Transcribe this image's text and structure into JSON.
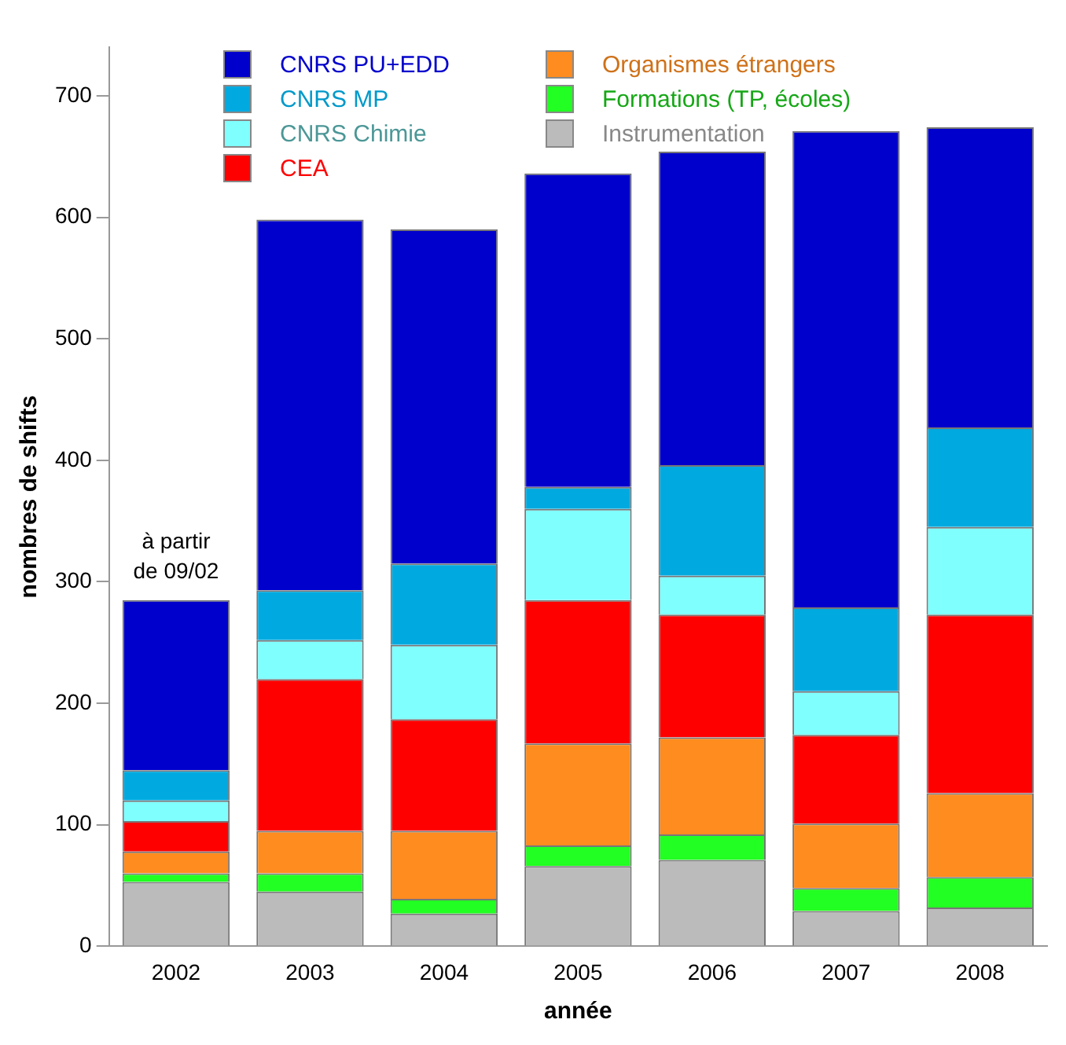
{
  "chart_data": {
    "type": "bar",
    "stacked": true,
    "xlabel": "année",
    "ylabel": "nombres de shifts",
    "categories": [
      "2002",
      "2003",
      "2004",
      "2005",
      "2006",
      "2007",
      "2008"
    ],
    "series": [
      {
        "name": "Instrumentation",
        "color": "#bbbbbb",
        "values": [
          53,
          45,
          27,
          66,
          71,
          29,
          32
        ]
      },
      {
        "name": "Formations (TP, écoles)",
        "color": "#22ff22",
        "values": [
          7,
          15,
          12,
          17,
          21,
          19,
          25
        ]
      },
      {
        "name": "Organismes étrangers",
        "color": "#ff8c1e",
        "values": [
          18,
          35,
          56,
          84,
          80,
          53,
          69
        ]
      },
      {
        "name": "CEA",
        "color": "#ff0000",
        "values": [
          25,
          125,
          92,
          118,
          101,
          73,
          147
        ]
      },
      {
        "name": "CNRS Chimie",
        "color": "#80ffff",
        "values": [
          17,
          32,
          61,
          75,
          32,
          36,
          72
        ]
      },
      {
        "name": "CNRS MP",
        "color": "#00aae0",
        "values": [
          25,
          41,
          67,
          18,
          91,
          69,
          82
        ]
      },
      {
        "name": "CNRS PU+EDD",
        "color": "#0000cc",
        "values": [
          140,
          305,
          275,
          258,
          258,
          392,
          247
        ]
      }
    ],
    "ylim": [
      0,
      740
    ],
    "yticks": [
      0,
      100,
      200,
      300,
      400,
      500,
      600,
      700
    ],
    "grid": false,
    "legend": "top",
    "annotations": [
      {
        "text": "à partir de 09/02",
        "x": "2002",
        "y": 285
      }
    ]
  }
}
